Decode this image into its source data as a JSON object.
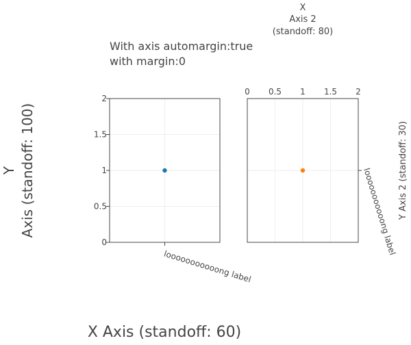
{
  "chart_data": [
    {
      "type": "scatter",
      "title_lines": [
        "With axis automargin:true",
        "with margin:0"
      ],
      "xlabel": "X Axis (standoff: 60)",
      "ylabel_lines": [
        "Y",
        "Axis (standoff: 100)"
      ],
      "xlim": [
        0,
        2
      ],
      "ylim": [
        0,
        2
      ],
      "x_tick_label": "looooooooooong label",
      "y_tick_labels": [
        "0",
        "0.5",
        "1",
        "1.5",
        "2"
      ],
      "grid": true,
      "series": [
        {
          "x": [
            1
          ],
          "y": [
            1
          ],
          "color": "#1f77b4"
        }
      ]
    },
    {
      "type": "scatter",
      "xlabel_lines": [
        "X",
        "Axis 2",
        "(standoff: 80)"
      ],
      "ylabel": "Y Axis 2 (standoff: 30)",
      "xlim": [
        0,
        2
      ],
      "ylim": [
        0,
        2
      ],
      "x_tick_labels": [
        "0",
        "0.5",
        "1",
        "1.5",
        "2"
      ],
      "y_tick_label": "looooooooooong label",
      "grid": true,
      "series": [
        {
          "x": [
            1
          ],
          "y": [
            1
          ],
          "color": "#ff7f0e"
        }
      ]
    }
  ]
}
